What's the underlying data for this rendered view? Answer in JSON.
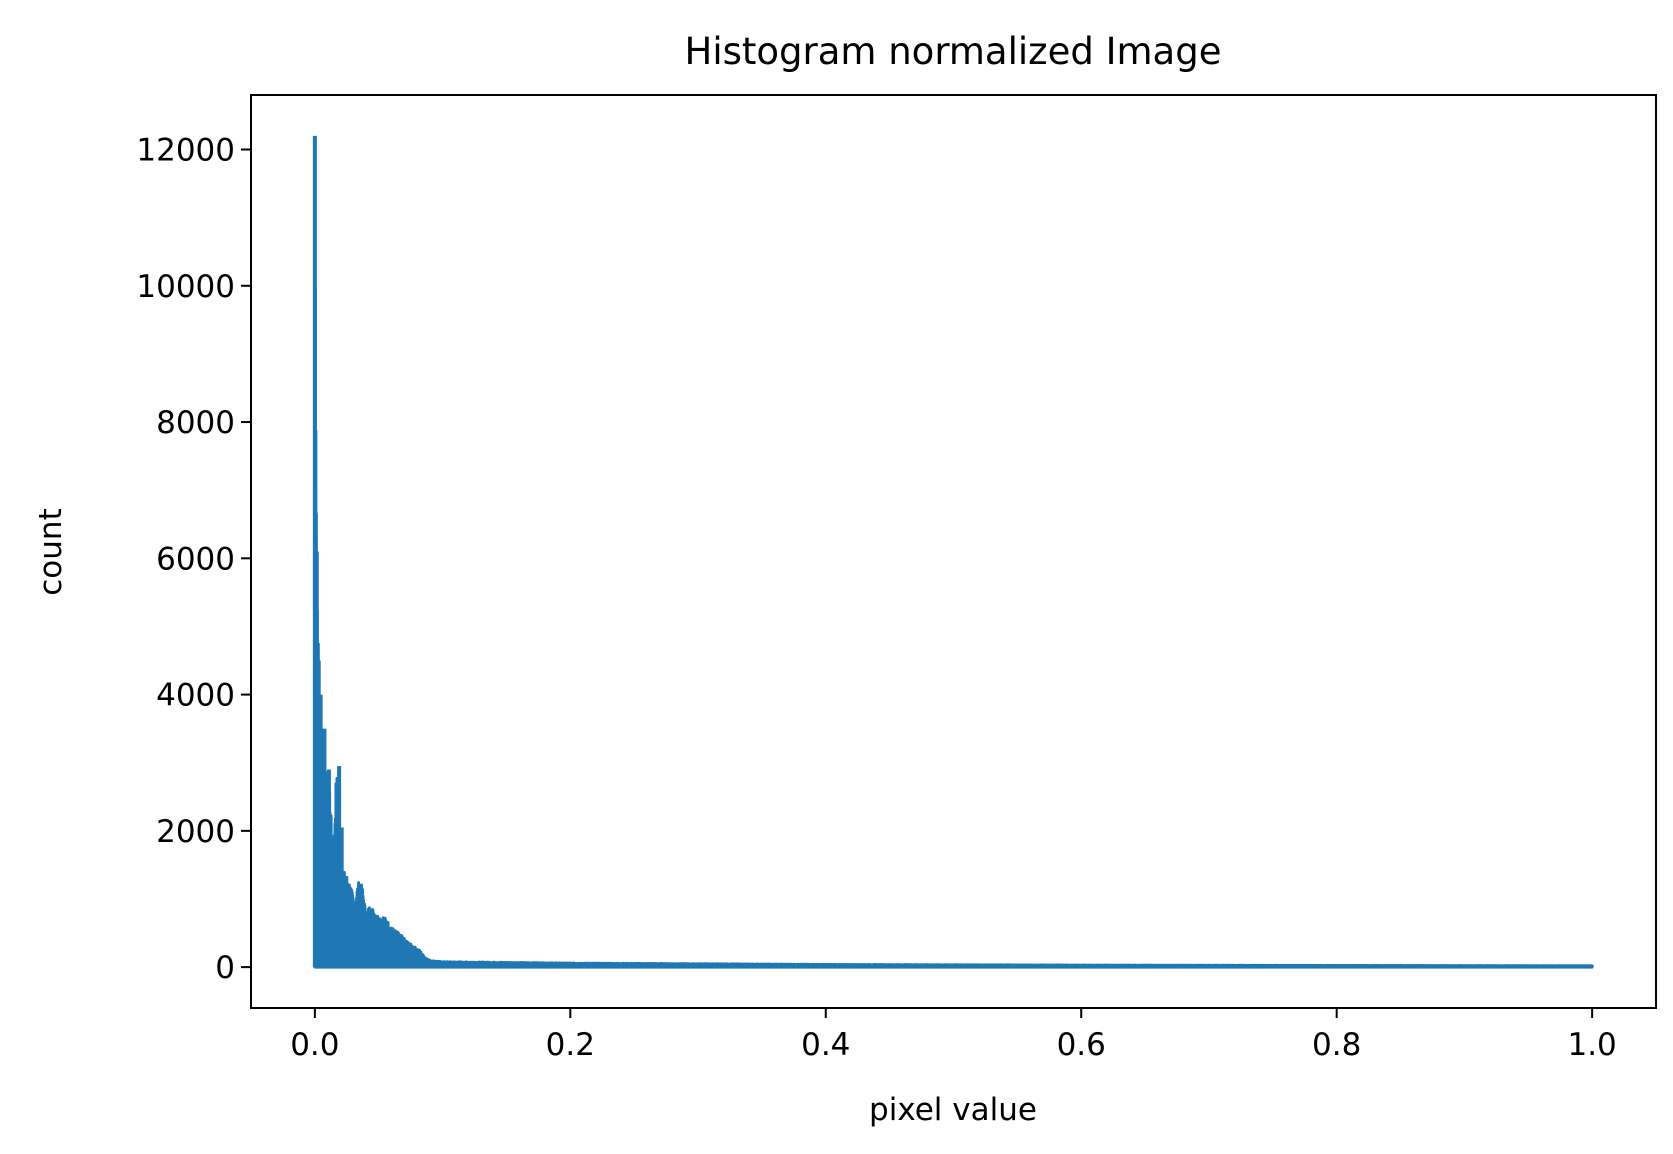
{
  "chart_data": {
    "type": "line",
    "title": "Histogram normalized Image",
    "xlabel": "pixel value",
    "ylabel": "count",
    "xlim": [
      -0.05,
      1.05
    ],
    "ylim": [
      -600,
      12800
    ],
    "xticks": [
      0.0,
      0.2,
      0.4,
      0.6,
      0.8,
      1.0
    ],
    "xtick_labels": [
      "0.0",
      "0.2",
      "0.4",
      "0.6",
      "0.8",
      "1.0"
    ],
    "yticks": [
      0,
      2000,
      4000,
      6000,
      8000,
      10000,
      12000
    ],
    "ytick_labels": [
      "0",
      "2000",
      "4000",
      "6000",
      "8000",
      "10000",
      "12000"
    ],
    "grid": false,
    "legend": "none",
    "line_color": "#1f77b4",
    "envelope": {
      "x": [
        0.0,
        0.0015,
        0.003,
        0.0045,
        0.006,
        0.0075,
        0.009,
        0.011,
        0.013,
        0.015,
        0.017,
        0.019,
        0.021,
        0.023,
        0.025,
        0.028,
        0.031,
        0.034,
        0.037,
        0.04,
        0.043,
        0.046,
        0.05,
        0.054,
        0.058,
        0.062,
        0.066,
        0.07,
        0.074,
        0.078,
        0.082,
        0.086,
        0.09,
        0.1,
        0.2,
        0.4,
        0.6,
        0.8,
        1.0
      ],
      "y": [
        12200,
        6100,
        4500,
        4000,
        3500,
        2800,
        2850,
        2900,
        2100,
        1950,
        2950,
        2100,
        1450,
        1400,
        1350,
        1200,
        950,
        1250,
        1200,
        800,
        900,
        850,
        750,
        750,
        650,
        550,
        500,
        420,
        350,
        300,
        250,
        150,
        100,
        80,
        60,
        40,
        30,
        25,
        20
      ]
    }
  }
}
